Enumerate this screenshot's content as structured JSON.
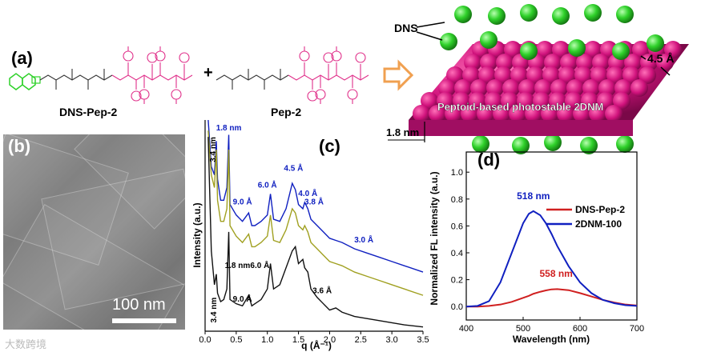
{
  "panels": {
    "a": "(a)",
    "b": "(b)",
    "c": "(c)",
    "d": "(d)"
  },
  "panel_a": {
    "mol1_label": "DNS-Pep-2",
    "mol2_label": "Pep-2",
    "plus": "+",
    "dns_label": "DNS",
    "spacing_label": "4.5 Å",
    "thickness_label": "1.8 nm",
    "sheet_caption": "Peptoid-based photostable 2DNM"
  },
  "panel_b": {
    "scale_label": "100 nm"
  },
  "watermark": "大数跨境",
  "colors": {
    "dns_green": "#2fd12a",
    "peptoid_magenta": "#c8147a",
    "blue_line": "#1020c0",
    "olive_line": "#a0a020",
    "black_line": "#111111",
    "red_line": "#d02020",
    "arrow_orange": "#f0a050"
  },
  "chart_data": [
    {
      "type": "line",
      "xlabel": "q (Å⁻¹)",
      "ylabel": "Intensity (a.u.)",
      "xlim": [
        0.0,
        3.5
      ],
      "xticks": [
        "0.0",
        "0.5",
        "1.0",
        "1.5",
        "2.0",
        "2.5",
        "3.0",
        "3.5"
      ],
      "x": [
        0.05,
        0.1,
        0.15,
        0.18,
        0.2,
        0.25,
        0.3,
        0.35,
        0.38,
        0.4,
        0.5,
        0.6,
        0.7,
        0.75,
        0.8,
        0.9,
        1.0,
        1.05,
        1.1,
        1.2,
        1.3,
        1.4,
        1.45,
        1.5,
        1.57,
        1.6,
        1.65,
        1.7,
        1.8,
        1.9,
        2.0,
        2.1,
        2.2,
        2.4,
        2.6,
        2.8,
        3.0,
        3.2,
        3.5
      ],
      "series": [
        {
          "color": "#1020c0",
          "values": [
            1.0,
            0.78,
            0.74,
            0.9,
            0.72,
            0.62,
            0.62,
            0.68,
            0.93,
            0.6,
            0.55,
            0.52,
            0.56,
            0.5,
            0.5,
            0.52,
            0.55,
            0.65,
            0.53,
            0.52,
            0.58,
            0.7,
            0.67,
            0.6,
            0.58,
            0.61,
            0.58,
            0.53,
            0.5,
            0.47,
            0.44,
            0.43,
            0.42,
            0.39,
            0.37,
            0.35,
            0.33,
            0.31,
            0.28
          ]
        },
        {
          "color": "#a0a020",
          "values": [
            0.95,
            0.74,
            0.68,
            0.86,
            0.62,
            0.52,
            0.52,
            0.58,
            0.86,
            0.5,
            0.45,
            0.42,
            0.46,
            0.4,
            0.4,
            0.42,
            0.45,
            0.55,
            0.43,
            0.42,
            0.48,
            0.58,
            0.56,
            0.5,
            0.48,
            0.5,
            0.47,
            0.42,
            0.39,
            0.36,
            0.33,
            0.32,
            0.31,
            0.28,
            0.26,
            0.24,
            0.22,
            0.2,
            0.17
          ]
        },
        {
          "color": "#111111",
          "values": [
            0.92,
            0.38,
            0.22,
            0.27,
            0.18,
            0.14,
            0.15,
            0.2,
            0.47,
            0.15,
            0.13,
            0.12,
            0.17,
            0.12,
            0.13,
            0.15,
            0.2,
            0.32,
            0.2,
            0.22,
            0.3,
            0.38,
            0.4,
            0.32,
            0.34,
            0.3,
            0.28,
            0.2,
            0.16,
            0.13,
            0.1,
            0.11,
            0.09,
            0.07,
            0.06,
            0.05,
            0.04,
            0.03,
            0.02
          ]
        }
      ],
      "annotations": [
        {
          "text": "1.8 nm",
          "color": "#1020c0",
          "x": 0.38,
          "y": 0.95
        },
        {
          "text": "3.4 nm",
          "color": "#000000",
          "x": 0.17,
          "y": 0.86,
          "rotate": true
        },
        {
          "text": "9.0 Å",
          "color": "#1020c0",
          "x": 0.6,
          "y": 0.6
        },
        {
          "text": "6.0 Å",
          "color": "#1020c0",
          "x": 1.0,
          "y": 0.68
        },
        {
          "text": "4.5 Å",
          "color": "#1020c0",
          "x": 1.42,
          "y": 0.76
        },
        {
          "text": "4.0 Å",
          "color": "#1020c0",
          "x": 1.65,
          "y": 0.64
        },
        {
          "text": "3.8 Å",
          "color": "#1020c0",
          "x": 1.75,
          "y": 0.6
        },
        {
          "text": "3.0 Å",
          "color": "#1020c0",
          "x": 2.55,
          "y": 0.42
        },
        {
          "text": "1.8 nm",
          "color": "#000000",
          "x": 0.52,
          "y": 0.3
        },
        {
          "text": "6.0 Å",
          "color": "#000000",
          "x": 0.88,
          "y": 0.3
        },
        {
          "text": "9.0 Å",
          "color": "#000000",
          "x": 0.6,
          "y": 0.14
        },
        {
          "text": "3.6 Å",
          "color": "#000000",
          "x": 1.88,
          "y": 0.18
        },
        {
          "text": "3.4 nm",
          "color": "#000000",
          "x": 0.18,
          "y": 0.1,
          "rotate": true
        }
      ]
    },
    {
      "type": "line",
      "xlabel": "Wavelength (nm)",
      "ylabel": "Normalized FL intensity (a.u.)",
      "xlim": [
        400,
        700
      ],
      "ylim": [
        -0.1,
        1.15
      ],
      "xticks": [
        "400",
        "500",
        "600",
        "700"
      ],
      "yticks": [
        "0.0",
        "0.2",
        "0.4",
        "0.6",
        "0.8",
        "1.0"
      ],
      "x": [
        400,
        420,
        440,
        460,
        480,
        500,
        510,
        518,
        530,
        540,
        550,
        560,
        580,
        600,
        620,
        640,
        660,
        680,
        700
      ],
      "series": [
        {
          "name": "DNS-Pep-2",
          "color": "#d02020",
          "values": [
            0.0,
            0.0,
            0.005,
            0.015,
            0.035,
            0.065,
            0.08,
            0.095,
            0.11,
            0.12,
            0.128,
            0.13,
            0.122,
            0.1,
            0.075,
            0.05,
            0.03,
            0.015,
            0.008
          ]
        },
        {
          "name": "2DNM-100",
          "color": "#1020c0",
          "values": [
            0.0,
            0.005,
            0.04,
            0.18,
            0.4,
            0.62,
            0.69,
            0.71,
            0.68,
            0.62,
            0.54,
            0.45,
            0.3,
            0.18,
            0.1,
            0.05,
            0.025,
            0.01,
            0.005
          ]
        }
      ],
      "annotations": [
        {
          "text": "518 nm",
          "color": "#1020c0",
          "x": 518,
          "y": 0.8
        },
        {
          "text": "558 nm",
          "color": "#d02020",
          "x": 558,
          "y": 0.22
        }
      ],
      "legend": "top-right"
    }
  ]
}
